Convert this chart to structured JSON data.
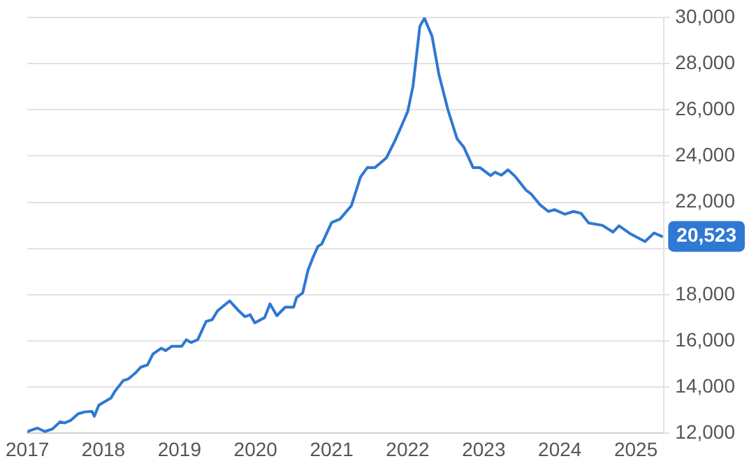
{
  "chart_data": {
    "type": "line",
    "x": [
      2017.0,
      2017.13,
      2017.23,
      2017.33,
      2017.43,
      2017.49,
      2017.57,
      2017.67,
      2017.76,
      2017.85,
      2017.88,
      2017.94,
      2018.1,
      2018.15,
      2018.26,
      2018.33,
      2018.42,
      2018.49,
      2018.58,
      2018.65,
      2018.76,
      2018.82,
      2018.9,
      2019.03,
      2019.09,
      2019.15,
      2019.24,
      2019.35,
      2019.43,
      2019.5,
      2019.66,
      2019.78,
      2019.86,
      2019.93,
      2019.99,
      2020.12,
      2020.19,
      2020.28,
      2020.39,
      2020.5,
      2020.54,
      2020.62,
      2020.69,
      2020.75,
      2020.82,
      2020.87,
      2021.0,
      2021.11,
      2021.26,
      2021.38,
      2021.47,
      2021.57,
      2021.72,
      2021.83,
      2021.9,
      2022.0,
      2022.07,
      2022.16,
      2022.22,
      2022.32,
      2022.41,
      2022.53,
      2022.65,
      2022.74,
      2022.86,
      2022.95,
      2023.09,
      2023.15,
      2023.23,
      2023.32,
      2023.41,
      2023.56,
      2023.62,
      2023.74,
      2023.85,
      2023.93,
      2024.07,
      2024.18,
      2024.28,
      2024.38,
      2024.56,
      2024.7,
      2024.78,
      2024.92,
      2025.12,
      2025.24,
      2025.34
    ],
    "series": [
      {
        "color": "#2f78d3",
        "values": [
          12080,
          12230,
          12080,
          12190,
          12500,
          12450,
          12560,
          12850,
          12930,
          12950,
          12740,
          13220,
          13530,
          13820,
          14280,
          14360,
          14610,
          14860,
          14960,
          15430,
          15680,
          15580,
          15770,
          15770,
          16050,
          15930,
          16050,
          16840,
          16920,
          17300,
          17730,
          17300,
          17050,
          17130,
          16780,
          17010,
          17600,
          17090,
          17460,
          17460,
          17880,
          18080,
          19060,
          19570,
          20090,
          20190,
          21120,
          21270,
          21850,
          23090,
          23500,
          23500,
          23920,
          24640,
          25160,
          25920,
          27020,
          29610,
          29960,
          29190,
          27540,
          25990,
          24740,
          24370,
          23500,
          23500,
          23150,
          23300,
          23170,
          23400,
          23130,
          22510,
          22370,
          21890,
          21600,
          21680,
          21480,
          21600,
          21520,
          21100,
          21000,
          20710,
          20980,
          20650,
          20300,
          20670,
          20523
        ]
      }
    ],
    "xlim": [
      2017,
      2025.37
    ],
    "xticks": [
      2017,
      2018,
      2019,
      2020,
      2021,
      2022,
      2023,
      2024,
      2025
    ],
    "ylim": [
      12000,
      30000
    ],
    "yticks": [
      {
        "value": 12000,
        "label": "12,000"
      },
      {
        "value": 14000,
        "label": "14,000"
      },
      {
        "value": 16000,
        "label": "16,000"
      },
      {
        "value": 18000,
        "label": "18,000"
      },
      {
        "value": 20000,
        "label": null
      },
      {
        "value": 22000,
        "label": "22,000"
      },
      {
        "value": 24000,
        "label": "24,000"
      },
      {
        "value": 26000,
        "label": "26,000"
      },
      {
        "value": 28000,
        "label": "28,000"
      },
      {
        "value": 30000,
        "label": "30,000"
      }
    ],
    "annotations": [
      {
        "text": "20,523",
        "x": 2025.34,
        "y": 20523
      }
    ],
    "grid": "y",
    "legend": false,
    "marker": "none",
    "line_style": "solid"
  }
}
